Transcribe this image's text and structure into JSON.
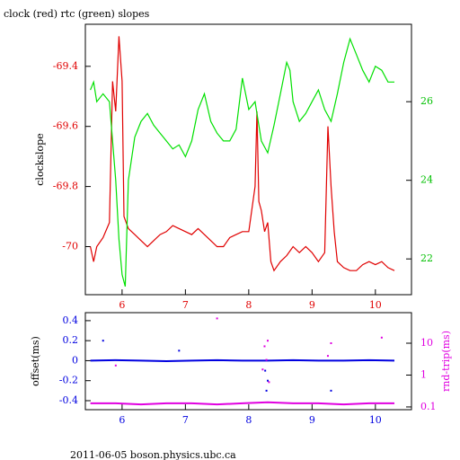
{
  "chart_data": [
    {
      "type": "line",
      "title": "clock (red) rtc (green) slopes",
      "ylabel": "clockslope",
      "xlim": [
        5.42,
        10.57
      ],
      "xticks": [
        6,
        7,
        8,
        9,
        10
      ],
      "xtick_color": "#e00000",
      "ylim": [
        -70.16,
        -69.26
      ],
      "yticks": [
        -69.4,
        -69.6,
        -69.8,
        -70
      ],
      "ytick_color": "#e00000",
      "y2lim": [
        21.09,
        27.97
      ],
      "y2ticks": [
        26,
        24,
        22
      ],
      "y2tick_color": "#00c000",
      "series": [
        {
          "color": "#e00000",
          "mode": "line",
          "x": [
            5.5,
            5.55,
            5.6,
            5.7,
            5.8,
            5.85,
            5.9,
            5.95,
            6.0,
            6.03,
            6.1,
            6.2,
            6.3,
            6.4,
            6.5,
            6.6,
            6.7,
            6.8,
            6.9,
            7.0,
            7.1,
            7.2,
            7.3,
            7.4,
            7.5,
            7.6,
            7.7,
            7.8,
            7.9,
            8.0,
            8.1,
            8.13,
            8.16,
            8.2,
            8.25,
            8.3,
            8.35,
            8.4,
            8.5,
            8.6,
            8.7,
            8.8,
            8.9,
            9.0,
            9.1,
            9.2,
            9.25,
            9.3,
            9.35,
            9.4,
            9.5,
            9.6,
            9.7,
            9.8,
            9.9,
            10.0,
            10.1,
            10.2,
            10.3
          ],
          "values": [
            -70.0,
            -70.05,
            -70.0,
            -69.97,
            -69.92,
            -69.45,
            -69.55,
            -69.3,
            -69.45,
            -69.9,
            -69.94,
            -69.96,
            -69.98,
            -70.0,
            -69.98,
            -69.96,
            -69.95,
            -69.93,
            -69.94,
            -69.95,
            -69.96,
            -69.94,
            -69.96,
            -69.98,
            -70.0,
            -70.0,
            -69.97,
            -69.96,
            -69.95,
            -69.95,
            -69.8,
            -69.55,
            -69.85,
            -69.88,
            -69.95,
            -69.92,
            -70.05,
            -70.08,
            -70.05,
            -70.03,
            -70.0,
            -70.02,
            -70.0,
            -70.02,
            -70.05,
            -70.02,
            -69.6,
            -69.8,
            -69.95,
            -70.05,
            -70.07,
            -70.08,
            -70.08,
            -70.06,
            -70.05,
            -70.06,
            -70.05,
            -70.07,
            -70.08
          ]
        },
        {
          "color": "#00e000",
          "mode": "line",
          "axis": "y2",
          "x": [
            5.5,
            5.55,
            5.6,
            5.7,
            5.8,
            5.85,
            5.9,
            5.95,
            6.0,
            6.05,
            6.1,
            6.2,
            6.3,
            6.4,
            6.5,
            6.6,
            6.7,
            6.8,
            6.9,
            7.0,
            7.1,
            7.2,
            7.3,
            7.4,
            7.5,
            7.6,
            7.7,
            7.8,
            7.9,
            8.0,
            8.1,
            8.2,
            8.3,
            8.4,
            8.5,
            8.6,
            8.65,
            8.7,
            8.8,
            8.9,
            9.0,
            9.1,
            9.2,
            9.3,
            9.4,
            9.5,
            9.6,
            9.7,
            9.8,
            9.9,
            10.0,
            10.1,
            10.2,
            10.3
          ],
          "values": [
            26.3,
            26.5,
            26.0,
            26.2,
            26.0,
            25.0,
            24.0,
            22.5,
            21.6,
            21.3,
            24.0,
            25.1,
            25.5,
            25.7,
            25.4,
            25.2,
            25.0,
            24.8,
            24.9,
            24.6,
            25.0,
            25.8,
            26.2,
            25.5,
            25.2,
            25.0,
            25.0,
            25.3,
            26.6,
            25.8,
            26.0,
            25.0,
            24.7,
            25.4,
            26.2,
            27.0,
            26.8,
            26.0,
            25.5,
            25.7,
            26.0,
            26.3,
            25.8,
            25.5,
            26.2,
            27.0,
            27.6,
            27.2,
            26.8,
            26.5,
            26.9,
            26.8,
            26.5,
            26.5
          ]
        }
      ]
    },
    {
      "type": "line",
      "ylabel": "offset(ms)",
      "y2label": "rnd-trip(ms)",
      "xlim": [
        5.42,
        10.57
      ],
      "xticks": [
        6,
        7,
        8,
        9,
        10
      ],
      "xtick_color": "#0000e0",
      "ylim": [
        -0.49,
        0.48
      ],
      "yticks": [
        0.4,
        0.2,
        0,
        -0.2,
        -0.4
      ],
      "ytick_color": "#0000e0",
      "y2lim": [
        0.082,
        91
      ],
      "y2ticks": [
        10,
        1,
        0.1
      ],
      "y2tick_color": "#e000e0",
      "y2log": true,
      "series": [
        {
          "color": "#0000e0",
          "mode": "line",
          "x": [
            5.5,
            5.9,
            6.3,
            6.7,
            7.1,
            7.5,
            7.9,
            8.3,
            8.7,
            9.1,
            9.5,
            9.9,
            10.3
          ],
          "values": [
            0,
            0.005,
            0,
            -0.005,
            0,
            0.005,
            0,
            0,
            0.005,
            0,
            0,
            0.005,
            0
          ]
        },
        {
          "color": "#e000e0",
          "mode": "line",
          "axis": "y2",
          "x": [
            5.5,
            5.9,
            6.3,
            6.7,
            7.1,
            7.5,
            7.9,
            8.3,
            8.7,
            9.1,
            9.5,
            9.9,
            10.3
          ],
          "values": [
            0.13,
            0.13,
            0.12,
            0.13,
            0.13,
            0.12,
            0.13,
            0.14,
            0.13,
            0.13,
            0.12,
            0.13,
            0.13
          ]
        },
        {
          "color": "#e000e0",
          "mode": "markers",
          "axis": "y2",
          "x": [
            8.25,
            8.28,
            8.3,
            8.32,
            9.3,
            7.5,
            5.9,
            10.1,
            8.22,
            9.25
          ],
          "values": [
            8,
            3,
            12,
            0.6,
            10,
            60,
            2,
            15,
            1.5,
            4
          ]
        },
        {
          "color": "#0000e0",
          "mode": "markers",
          "x": [
            8.3,
            8.28,
            5.7,
            9.3,
            8.26,
            6.9
          ],
          "values": [
            -0.2,
            -0.3,
            0.2,
            -0.3,
            -0.1,
            0.1
          ]
        }
      ]
    }
  ],
  "footer": "2011-06-05 boson.physics.ubc.ca"
}
